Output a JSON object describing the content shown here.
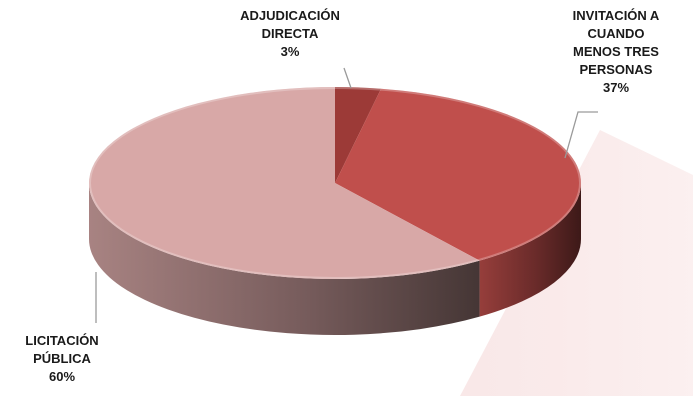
{
  "chart_data": {
    "type": "pie",
    "style": "3d",
    "slices": [
      {
        "label": "ADJUDICACIÓN DIRECTA",
        "value": 3,
        "value_label": "3%",
        "color": "#9c3a37"
      },
      {
        "label": "INVITACIÓN A CUANDO MENOS TRES PERSONAS",
        "value": 37,
        "value_label": "37%",
        "color": "#c04f4c"
      },
      {
        "label": "LICITACIÓN PÚBLICA",
        "value": 60,
        "value_label": "60%",
        "color": "#d8a8a7"
      }
    ],
    "label_lines": {
      "ADJUDICACIÓN DIRECTA": [
        "ADJUDICACIÓN",
        "DIRECTA",
        "3%"
      ],
      "INVITACIÓN A CUANDO MENOS TRES PERSONAS": [
        "INVITACIÓN A",
        "CUANDO",
        "MENOS TRES",
        "PERSONAS",
        "37%"
      ],
      "LICITACIÓN PÚBLICA": [
        "LICITACIÓN",
        "PÚBLICA",
        "60%"
      ]
    }
  }
}
